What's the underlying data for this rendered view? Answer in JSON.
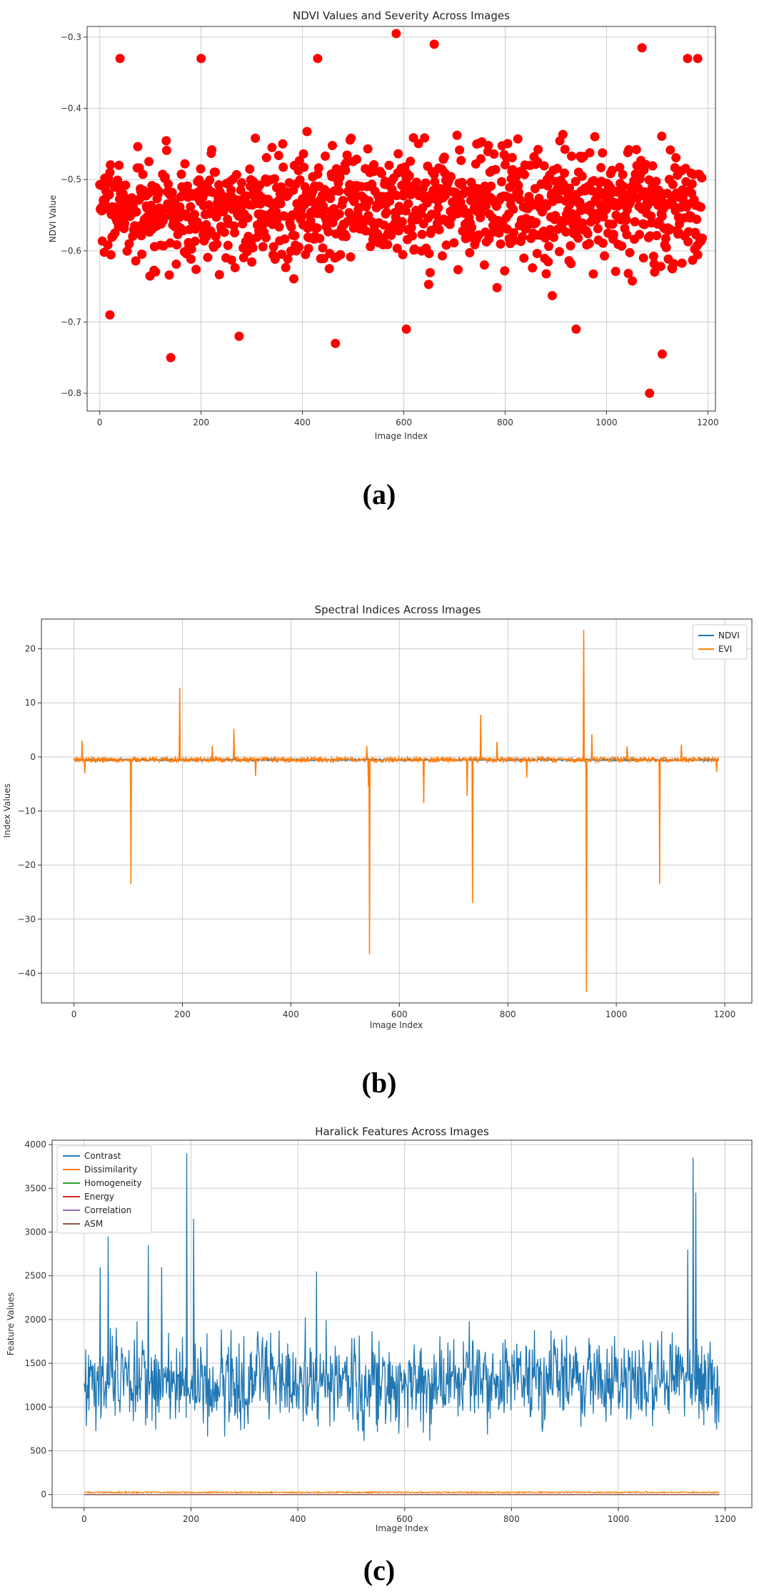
{
  "captions": [
    "(a)",
    "(b)",
    "(c)"
  ],
  "chart_data": [
    {
      "type": "scatter",
      "title": "NDVI Values and Severity Across Images",
      "xlabel": "Image Index",
      "ylabel": "NDVI Value",
      "xlim": [
        -25,
        1215
      ],
      "ylim": [
        -0.825,
        -0.285
      ],
      "xticks": [
        0,
        200,
        400,
        600,
        800,
        1000,
        1200
      ],
      "yticks": [
        -0.3,
        -0.4,
        -0.5,
        -0.6,
        -0.7,
        -0.8
      ],
      "ytick_labels": [
        "−0.3",
        "−0.4",
        "−0.5",
        "−0.6",
        "−0.7",
        "−0.8"
      ],
      "grid": true,
      "color": "#ff0000",
      "n_points": 1190,
      "notable_points": [
        {
          "x": 20,
          "y": -0.69
        },
        {
          "x": 40,
          "y": -0.33
        },
        {
          "x": 140,
          "y": -0.75
        },
        {
          "x": 200,
          "y": -0.33
        },
        {
          "x": 275,
          "y": -0.72
        },
        {
          "x": 430,
          "y": -0.33
        },
        {
          "x": 465,
          "y": -0.73
        },
        {
          "x": 585,
          "y": -0.295
        },
        {
          "x": 605,
          "y": -0.71
        },
        {
          "x": 660,
          "y": -0.31
        },
        {
          "x": 940,
          "y": -0.71
        },
        {
          "x": 1070,
          "y": -0.315
        },
        {
          "x": 1085,
          "y": -0.8
        },
        {
          "x": 1110,
          "y": -0.745
        },
        {
          "x": 1160,
          "y": -0.33
        },
        {
          "x": 1180,
          "y": -0.33
        }
      ],
      "typical_range": [
        -0.65,
        -0.45
      ],
      "center": -0.54
    },
    {
      "type": "line",
      "title": "Spectral Indices Across Images",
      "xlabel": "Image Index",
      "ylabel": "Index Values",
      "xlim": [
        -60,
        1250
      ],
      "ylim": [
        -45.5,
        25.5
      ],
      "xticks": [
        0,
        200,
        400,
        600,
        800,
        1000,
        1200
      ],
      "yticks": [
        20,
        10,
        0,
        -10,
        -20,
        -30,
        -40
      ],
      "ytick_labels": [
        "20",
        "10",
        "0",
        "−10",
        "−20",
        "−30",
        "−40"
      ],
      "grid": true,
      "legend": "top-right",
      "n_points": 1190,
      "series": [
        {
          "name": "NDVI",
          "color": "#1f77b4",
          "baseline": -0.55
        },
        {
          "name": "EVI",
          "color": "#ff7f0e",
          "baseline": -0.5,
          "spikes": [
            {
              "x": 15,
              "y": 3
            },
            {
              "x": 20,
              "y": -3
            },
            {
              "x": 105,
              "y": -23.5
            },
            {
              "x": 195,
              "y": 12.8
            },
            {
              "x": 255,
              "y": 2
            },
            {
              "x": 295,
              "y": 5.2
            },
            {
              "x": 335,
              "y": -3.5
            },
            {
              "x": 540,
              "y": 2
            },
            {
              "x": 543,
              "y": -5.5
            },
            {
              "x": 545,
              "y": -36.5
            },
            {
              "x": 645,
              "y": -8.5
            },
            {
              "x": 725,
              "y": -7.2
            },
            {
              "x": 735,
              "y": -27
            },
            {
              "x": 750,
              "y": 7.8
            },
            {
              "x": 780,
              "y": 2.8
            },
            {
              "x": 835,
              "y": -3.8
            },
            {
              "x": 940,
              "y": 23.5
            },
            {
              "x": 945,
              "y": -43.5
            },
            {
              "x": 955,
              "y": 4.2
            },
            {
              "x": 1020,
              "y": 2
            },
            {
              "x": 1080,
              "y": -23.5
            },
            {
              "x": 1120,
              "y": 2.3
            },
            {
              "x": 1185,
              "y": -2.8
            }
          ]
        }
      ]
    },
    {
      "type": "line",
      "title": "Haralick Features Across Images",
      "xlabel": "Image Index",
      "ylabel": "Feature Values",
      "xlim": [
        -60,
        1250
      ],
      "ylim": [
        -150,
        4050
      ],
      "xticks": [
        0,
        200,
        400,
        600,
        800,
        1000,
        1200
      ],
      "yticks": [
        4000,
        3500,
        3000,
        2500,
        2000,
        1500,
        1000,
        500,
        0
      ],
      "grid": true,
      "legend": "top-left",
      "n_points": 1190,
      "series": [
        {
          "name": "Contrast",
          "color": "#1f77b4",
          "mean": 1300,
          "spread": 350,
          "spikes": [
            {
              "x": 30,
              "y": 2600
            },
            {
              "x": 45,
              "y": 2950
            },
            {
              "x": 120,
              "y": 2850
            },
            {
              "x": 145,
              "y": 2600
            },
            {
              "x": 192,
              "y": 3900
            },
            {
              "x": 205,
              "y": 3150
            },
            {
              "x": 435,
              "y": 2550
            },
            {
              "x": 1140,
              "y": 3850
            },
            {
              "x": 1145,
              "y": 3450
            },
            {
              "x": 1130,
              "y": 2800
            }
          ]
        },
        {
          "name": "Dissimilarity",
          "color": "#ff7f0e",
          "mean": 25
        },
        {
          "name": "Homogeneity",
          "color": "#2ca02c",
          "mean": 0.1
        },
        {
          "name": "Energy",
          "color": "#d62728",
          "mean": 0.05
        },
        {
          "name": "Correlation",
          "color": "#9467bd",
          "mean": 0.9
        },
        {
          "name": "ASM",
          "color": "#8c564b",
          "mean": 0.01
        }
      ]
    }
  ]
}
